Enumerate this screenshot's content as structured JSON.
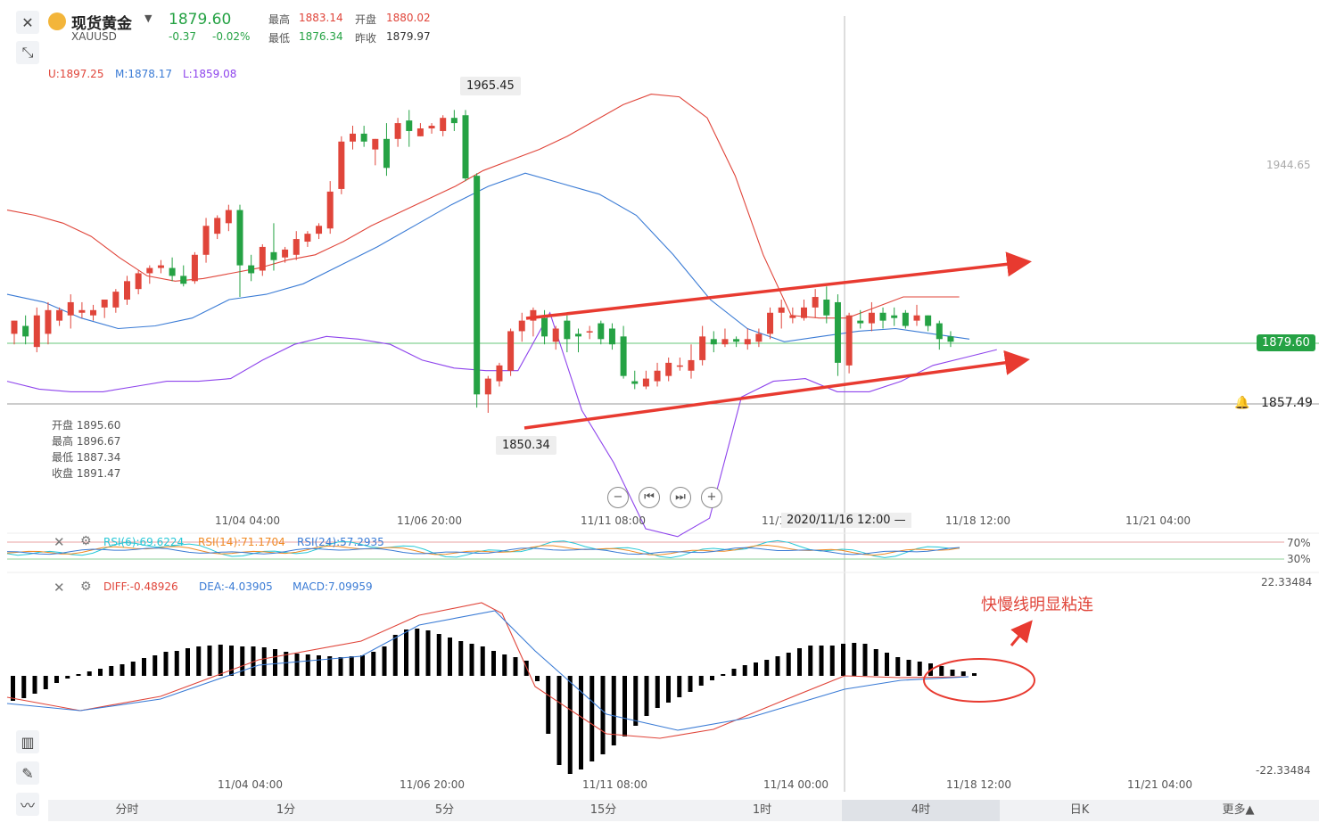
{
  "header": {
    "name": "现货黄金",
    "symbol": "XAUUSD",
    "price": "1879.60",
    "change": "-0.37",
    "change_pct": "-0.02%",
    "high_label": "最高",
    "high": "1883.14",
    "low_label": "最低",
    "low": "1876.34",
    "open_label": "开盘",
    "open": "1880.02",
    "prev_label": "昨收",
    "prev": "1879.97"
  },
  "boll_legend": {
    "u": "U:1897.25",
    "m": "M:1878.17",
    "l": "L:1859.08"
  },
  "ohlc_tip": {
    "open": "开盘 1895.60",
    "high": "最高 1896.67",
    "low": "最低 1887.34",
    "close": "收盘 1891.47"
  },
  "marks": {
    "peak": "1965.45",
    "trough": "1850.34"
  },
  "price_axis": {
    "upper": "1944.65",
    "current": "1879.60",
    "alert": "1857.49"
  },
  "time_axis": [
    "11/04 04:00",
    "11/06 20:00",
    "11/11 08:00",
    "11/1",
    "11/18 12:00",
    "11/21 04:00"
  ],
  "crosshair_time": "2020/11/16 12:00 —",
  "rsi": {
    "rsi6": "RSI(6):69.6224",
    "rsi14": "RSI(14):71.1704",
    "rsi24": "RSI(24):57.2935",
    "level70": "70%",
    "level30": "30%"
  },
  "macd": {
    "diff": "DIFF:-0.48926",
    "dea": "DEA:-4.03905",
    "macd": "MACD:7.09959",
    "top": "22.33484",
    "bottom": "-22.33484"
  },
  "macd_axis": [
    "11/04 04:00",
    "11/06 20:00",
    "11/11 08:00",
    "11/14 00:00",
    "11/18 12:00",
    "11/21 04:00"
  ],
  "annotation": "快慢线明显粘连",
  "toolbar": {
    "items": [
      "分时",
      "1分",
      "5分",
      "15分",
      "1时",
      "4时",
      "日K",
      "更多▲"
    ],
    "active": "4时"
  },
  "colors": {
    "up": "#e0453a",
    "down": "#25a244",
    "upper_band": "#e0453a",
    "mid_band": "#3a7bd5",
    "lower_band": "#8e44ec",
    "rsi6": "#25c7d6",
    "rsi14": "#f08a24",
    "rsi24": "#3a7bd5"
  },
  "chart_data": {
    "type": "candlestick",
    "title": "",
    "ylim": [
      1840,
      1970
    ],
    "candles": [
      {
        "o": 1880,
        "h": 1885,
        "c": 1885,
        "l": 1876
      },
      {
        "o": 1883,
        "h": 1887,
        "c": 1879,
        "l": 1876
      },
      {
        "o": 1875,
        "h": 1890,
        "c": 1887,
        "l": 1873
      },
      {
        "o": 1880,
        "h": 1892,
        "c": 1889,
        "l": 1876
      },
      {
        "o": 1885,
        "h": 1890,
        "c": 1889,
        "l": 1883
      },
      {
        "o": 1887,
        "h": 1895,
        "c": 1892,
        "l": 1882
      },
      {
        "o": 1888,
        "h": 1892,
        "c": 1889,
        "l": 1886
      },
      {
        "o": 1887,
        "h": 1891,
        "c": 1889,
        "l": 1885
      },
      {
        "o": 1890,
        "h": 1893,
        "c": 1893,
        "l": 1886
      },
      {
        "o": 1890,
        "h": 1897,
        "c": 1896,
        "l": 1888
      },
      {
        "o": 1893,
        "h": 1902,
        "c": 1900,
        "l": 1891
      },
      {
        "o": 1897,
        "h": 1904,
        "c": 1903,
        "l": 1895
      },
      {
        "o": 1903,
        "h": 1906,
        "c": 1905,
        "l": 1899
      },
      {
        "o": 1905,
        "h": 1908,
        "c": 1906,
        "l": 1903
      },
      {
        "o": 1905,
        "h": 1909,
        "c": 1902,
        "l": 1900
      },
      {
        "o": 1902,
        "h": 1906,
        "c": 1899,
        "l": 1898
      },
      {
        "o": 1900,
        "h": 1911,
        "c": 1910,
        "l": 1899
      },
      {
        "o": 1910,
        "h": 1924,
        "c": 1921,
        "l": 1907
      },
      {
        "o": 1918,
        "h": 1925,
        "c": 1924,
        "l": 1916
      },
      {
        "o": 1922,
        "h": 1929,
        "c": 1927,
        "l": 1919
      },
      {
        "o": 1927,
        "h": 1929,
        "c": 1906,
        "l": 1894
      },
      {
        "o": 1906,
        "h": 1910,
        "c": 1903,
        "l": 1900
      },
      {
        "o": 1904,
        "h": 1914,
        "c": 1913,
        "l": 1902
      },
      {
        "o": 1911,
        "h": 1922,
        "c": 1908,
        "l": 1904
      },
      {
        "o": 1909,
        "h": 1913,
        "c": 1912,
        "l": 1907
      },
      {
        "o": 1910,
        "h": 1919,
        "c": 1916,
        "l": 1908
      },
      {
        "o": 1915,
        "h": 1919,
        "c": 1918,
        "l": 1913
      },
      {
        "o": 1918,
        "h": 1922,
        "c": 1921,
        "l": 1916
      },
      {
        "o": 1920,
        "h": 1938,
        "c": 1934,
        "l": 1918
      },
      {
        "o": 1935,
        "h": 1955,
        "c": 1953,
        "l": 1933
      },
      {
        "o": 1953,
        "h": 1959,
        "c": 1956,
        "l": 1950
      },
      {
        "o": 1956,
        "h": 1959,
        "c": 1953,
        "l": 1951
      },
      {
        "o": 1950,
        "h": 1954,
        "c": 1954,
        "l": 1944
      },
      {
        "o": 1954,
        "h": 1960,
        "c": 1943,
        "l": 1940
      },
      {
        "o": 1954,
        "h": 1962,
        "c": 1960,
        "l": 1951
      },
      {
        "o": 1961,
        "h": 1965,
        "c": 1957,
        "l": 1951
      },
      {
        "o": 1955,
        "h": 1960,
        "c": 1958,
        "l": 1955
      },
      {
        "o": 1958,
        "h": 1960,
        "c": 1959,
        "l": 1956
      },
      {
        "o": 1957,
        "h": 1963,
        "c": 1962,
        "l": 1955
      },
      {
        "o": 1962,
        "h": 1965,
        "c": 1960,
        "l": 1957
      },
      {
        "o": 1963,
        "h": 1965,
        "c": 1939,
        "l": 1938
      },
      {
        "o": 1940,
        "h": 1941,
        "c": 1857,
        "l": 1852
      },
      {
        "o": 1857,
        "h": 1864,
        "c": 1863,
        "l": 1850
      },
      {
        "o": 1862,
        "h": 1869,
        "c": 1868,
        "l": 1860
      },
      {
        "o": 1866,
        "h": 1882,
        "c": 1881,
        "l": 1864
      },
      {
        "o": 1881,
        "h": 1888,
        "c": 1885,
        "l": 1877
      },
      {
        "o": 1885,
        "h": 1890,
        "c": 1889,
        "l": 1879
      },
      {
        "o": 1886,
        "h": 1889,
        "c": 1879,
        "l": 1876
      },
      {
        "o": 1877,
        "h": 1883,
        "c": 1882,
        "l": 1874
      },
      {
        "o": 1885,
        "h": 1887,
        "c": 1878,
        "l": 1873
      },
      {
        "o": 1880,
        "h": 1882,
        "c": 1879,
        "l": 1873
      },
      {
        "o": 1881,
        "h": 1883,
        "c": 1881,
        "l": 1878
      },
      {
        "o": 1884,
        "h": 1885,
        "c": 1878,
        "l": 1876
      },
      {
        "o": 1882,
        "h": 1884,
        "c": 1876,
        "l": 1874
      },
      {
        "o": 1879,
        "h": 1883,
        "c": 1864,
        "l": 1863
      },
      {
        "o": 1862,
        "h": 1866,
        "c": 1861,
        "l": 1859
      },
      {
        "o": 1860,
        "h": 1866,
        "c": 1863,
        "l": 1859
      },
      {
        "o": 1862,
        "h": 1869,
        "c": 1866,
        "l": 1860
      },
      {
        "o": 1864,
        "h": 1871,
        "c": 1869,
        "l": 1862
      },
      {
        "o": 1868,
        "h": 1871,
        "c": 1868,
        "l": 1866
      },
      {
        "o": 1866,
        "h": 1876,
        "c": 1870,
        "l": 1863
      },
      {
        "o": 1870,
        "h": 1883,
        "c": 1879,
        "l": 1868
      },
      {
        "o": 1878,
        "h": 1881,
        "c": 1876,
        "l": 1873
      },
      {
        "o": 1876,
        "h": 1882,
        "c": 1878,
        "l": 1875
      },
      {
        "o": 1878,
        "h": 1879,
        "c": 1877,
        "l": 1875
      },
      {
        "o": 1876,
        "h": 1882,
        "c": 1878,
        "l": 1874
      },
      {
        "o": 1877,
        "h": 1882,
        "c": 1880,
        "l": 1875
      },
      {
        "o": 1880,
        "h": 1890,
        "c": 1888,
        "l": 1878
      },
      {
        "o": 1888,
        "h": 1893,
        "c": 1890,
        "l": 1882
      },
      {
        "o": 1886,
        "h": 1890,
        "c": 1887,
        "l": 1884
      },
      {
        "o": 1886,
        "h": 1893,
        "c": 1890,
        "l": 1885
      },
      {
        "o": 1890,
        "h": 1897,
        "c": 1894,
        "l": 1886
      },
      {
        "o": 1893,
        "h": 1898,
        "c": 1887,
        "l": 1884
      },
      {
        "o": 1892,
        "h": 1895,
        "c": 1869,
        "l": 1864
      },
      {
        "o": 1868,
        "h": 1888,
        "c": 1887,
        "l": 1865
      },
      {
        "o": 1885,
        "h": 1889,
        "c": 1884,
        "l": 1882
      },
      {
        "o": 1884,
        "h": 1892,
        "c": 1888,
        "l": 1881
      },
      {
        "o": 1888,
        "h": 1890,
        "c": 1885,
        "l": 1882
      },
      {
        "o": 1887,
        "h": 1890,
        "c": 1886,
        "l": 1883
      },
      {
        "o": 1888,
        "h": 1889,
        "c": 1883,
        "l": 1882
      },
      {
        "o": 1885,
        "h": 1891,
        "c": 1887,
        "l": 1883
      },
      {
        "o": 1887,
        "h": 1887,
        "c": 1883,
        "l": 1881
      },
      {
        "o": 1884,
        "h": 1885,
        "c": 1878,
        "l": 1874
      },
      {
        "o": 1879,
        "h": 1881,
        "c": 1877,
        "l": 1875
      }
    ],
    "upper_band": [
      1927,
      1925,
      1922,
      1917,
      1909,
      1902,
      1900,
      1901,
      1903,
      1905,
      1908,
      1910,
      1915,
      1921,
      1926,
      1931,
      1936,
      1942,
      1946,
      1950,
      1955,
      1961,
      1967,
      1971,
      1970,
      1962,
      1940,
      1910,
      1887,
      1886,
      1886,
      1890,
      1894,
      1894,
      1894
    ],
    "middle_band": [
      1895,
      1892,
      1886,
      1882,
      1883,
      1886,
      1893,
      1895,
      1899,
      1906,
      1913,
      1921,
      1929,
      1936,
      1941,
      1937,
      1933,
      1925,
      1910,
      1893,
      1882,
      1877,
      1879,
      1881,
      1882,
      1880,
      1878
    ],
    "lower_band": [
      1862,
      1859,
      1858,
      1858,
      1860,
      1862,
      1862,
      1863,
      1870,
      1876,
      1879,
      1878,
      1876,
      1870,
      1867,
      1866,
      1866,
      1888,
      1851,
      1831,
      1806,
      1803,
      1810,
      1856,
      1862,
      1863,
      1858,
      1858,
      1862,
      1868,
      1871,
      1874
    ]
  }
}
